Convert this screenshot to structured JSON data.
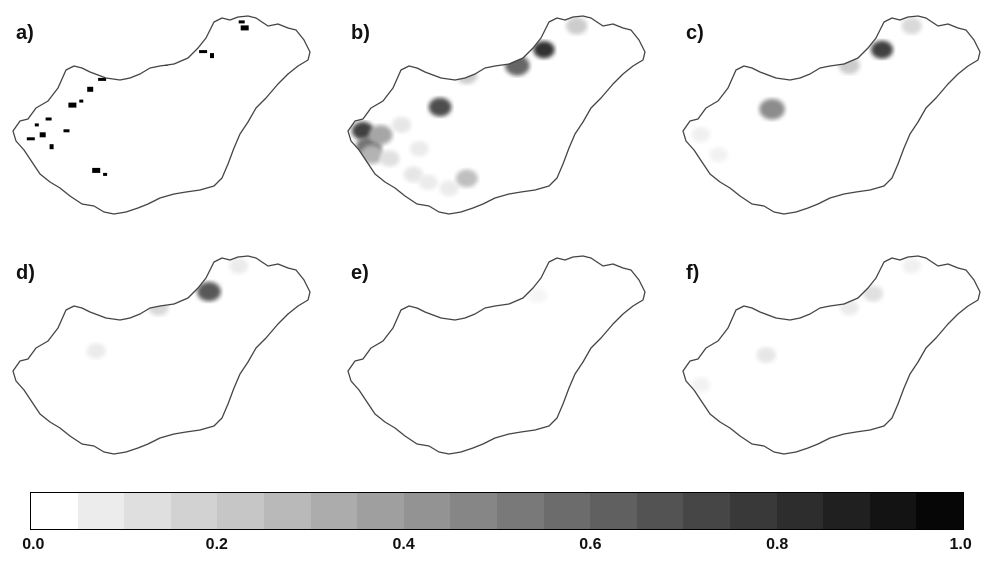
{
  "panels": [
    {
      "label": "a)",
      "blobs": [
        {
          "lon": 0.08,
          "lat": 0.55,
          "value": 1.0
        },
        {
          "lon": 0.1,
          "lat": 0.6,
          "value": 1.0
        },
        {
          "lon": 0.06,
          "lat": 0.62,
          "value": 1.0
        },
        {
          "lon": 0.13,
          "lat": 0.66,
          "value": 1.0
        },
        {
          "lon": 0.12,
          "lat": 0.52,
          "value": 1.0
        },
        {
          "lon": 0.2,
          "lat": 0.45,
          "value": 1.0
        },
        {
          "lon": 0.23,
          "lat": 0.43,
          "value": 1.0
        },
        {
          "lon": 0.26,
          "lat": 0.37,
          "value": 1.0
        },
        {
          "lon": 0.3,
          "lat": 0.32,
          "value": 1.0
        },
        {
          "lon": 0.33,
          "lat": 0.28,
          "value": 1.0
        },
        {
          "lon": 0.18,
          "lat": 0.58,
          "value": 1.0
        },
        {
          "lon": 0.28,
          "lat": 0.78,
          "value": 1.0
        },
        {
          "lon": 0.31,
          "lat": 0.8,
          "value": 1.0
        },
        {
          "lon": 0.51,
          "lat": 0.24,
          "value": 1.0
        },
        {
          "lon": 0.64,
          "lat": 0.18,
          "value": 1.0
        },
        {
          "lon": 0.67,
          "lat": 0.2,
          "value": 1.0
        },
        {
          "lon": 0.77,
          "lat": 0.03,
          "value": 1.0
        },
        {
          "lon": 0.78,
          "lat": 0.06,
          "value": 1.0
        }
      ]
    },
    {
      "label": "b)",
      "blobs": [
        {
          "lon": 0.05,
          "lat": 0.58,
          "value": 0.75
        },
        {
          "lon": 0.07,
          "lat": 0.66,
          "value": 0.55
        },
        {
          "lon": 0.11,
          "lat": 0.6,
          "value": 0.35
        },
        {
          "lon": 0.08,
          "lat": 0.7,
          "value": 0.3
        },
        {
          "lon": 0.14,
          "lat": 0.72,
          "value": 0.12
        },
        {
          "lon": 0.22,
          "lat": 0.8,
          "value": 0.1
        },
        {
          "lon": 0.18,
          "lat": 0.55,
          "value": 0.1
        },
        {
          "lon": 0.27,
          "lat": 0.84,
          "value": 0.08
        },
        {
          "lon": 0.34,
          "lat": 0.87,
          "value": 0.08
        },
        {
          "lon": 0.24,
          "lat": 0.67,
          "value": 0.08
        },
        {
          "lon": 0.31,
          "lat": 0.46,
          "value": 0.7
        },
        {
          "lon": 0.57,
          "lat": 0.25,
          "value": 0.6
        },
        {
          "lon": 0.66,
          "lat": 0.17,
          "value": 0.8
        },
        {
          "lon": 0.4,
          "lat": 0.82,
          "value": 0.25
        },
        {
          "lon": 0.4,
          "lat": 0.3,
          "value": 0.2
        },
        {
          "lon": 0.77,
          "lat": 0.05,
          "value": 0.2
        }
      ]
    },
    {
      "label": "c)",
      "blobs": [
        {
          "lon": 0.06,
          "lat": 0.6,
          "value": 0.06
        },
        {
          "lon": 0.12,
          "lat": 0.7,
          "value": 0.05
        },
        {
          "lon": 0.3,
          "lat": 0.47,
          "value": 0.45
        },
        {
          "lon": 0.56,
          "lat": 0.25,
          "value": 0.2
        },
        {
          "lon": 0.67,
          "lat": 0.17,
          "value": 0.75
        },
        {
          "lon": 0.77,
          "lat": 0.05,
          "value": 0.15
        }
      ]
    },
    {
      "label": "d)",
      "blobs": [
        {
          "lon": 0.28,
          "lat": 0.48,
          "value": 0.08
        },
        {
          "lon": 0.49,
          "lat": 0.26,
          "value": 0.15
        },
        {
          "lon": 0.66,
          "lat": 0.18,
          "value": 0.65
        },
        {
          "lon": 0.76,
          "lat": 0.05,
          "value": 0.08
        }
      ]
    },
    {
      "label": "e)",
      "blobs": [
        {
          "lon": 0.64,
          "lat": 0.2,
          "value": 0.04
        }
      ]
    },
    {
      "label": "f)",
      "blobs": [
        {
          "lon": 0.06,
          "lat": 0.65,
          "value": 0.05
        },
        {
          "lon": 0.28,
          "lat": 0.5,
          "value": 0.1
        },
        {
          "lon": 0.56,
          "lat": 0.26,
          "value": 0.08
        },
        {
          "lon": 0.64,
          "lat": 0.19,
          "value": 0.12
        },
        {
          "lon": 0.77,
          "lat": 0.05,
          "value": 0.06
        }
      ]
    }
  ],
  "colorbar": {
    "min": 0.0,
    "max": 1.0,
    "segments": 20,
    "tick_labels": [
      "0.0",
      "0.2",
      "0.4",
      "0.6",
      "0.8",
      "1.0"
    ],
    "tick_values": [
      0.0,
      0.2,
      0.4,
      0.6,
      0.8,
      1.0
    ],
    "low_color": "#ffffff",
    "high_color": "#000000"
  },
  "colors": {
    "outline": "#444444",
    "background": "#ffffff"
  }
}
